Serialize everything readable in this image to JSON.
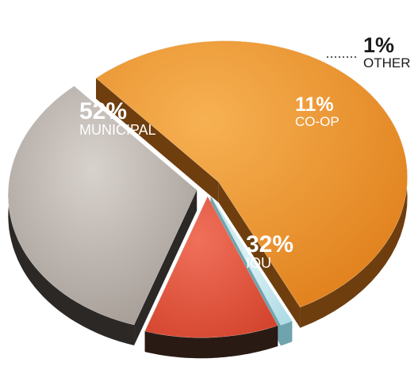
{
  "chart_data": {
    "type": "pie",
    "style": "3d-exploded",
    "slices": [
      {
        "key": "municipal",
        "label": "MUNICIPAL",
        "value": 52,
        "display": "52%",
        "color": "#F39A2E",
        "side_color": "#6E3E0E"
      },
      {
        "key": "other",
        "label": "OTHER",
        "value": 1,
        "display": "1%",
        "color": "#BFE6EE",
        "side_color": "#6FA4AE"
      },
      {
        "key": "coop",
        "label": "CO-OP",
        "value": 11,
        "display": "11%",
        "color": "#E9573D",
        "side_color": "#2A1A14"
      },
      {
        "key": "iou",
        "label": "IOU",
        "value": 32,
        "display": "32%",
        "color": "#BDB5AF",
        "side_color": "#2B2826"
      }
    ]
  }
}
